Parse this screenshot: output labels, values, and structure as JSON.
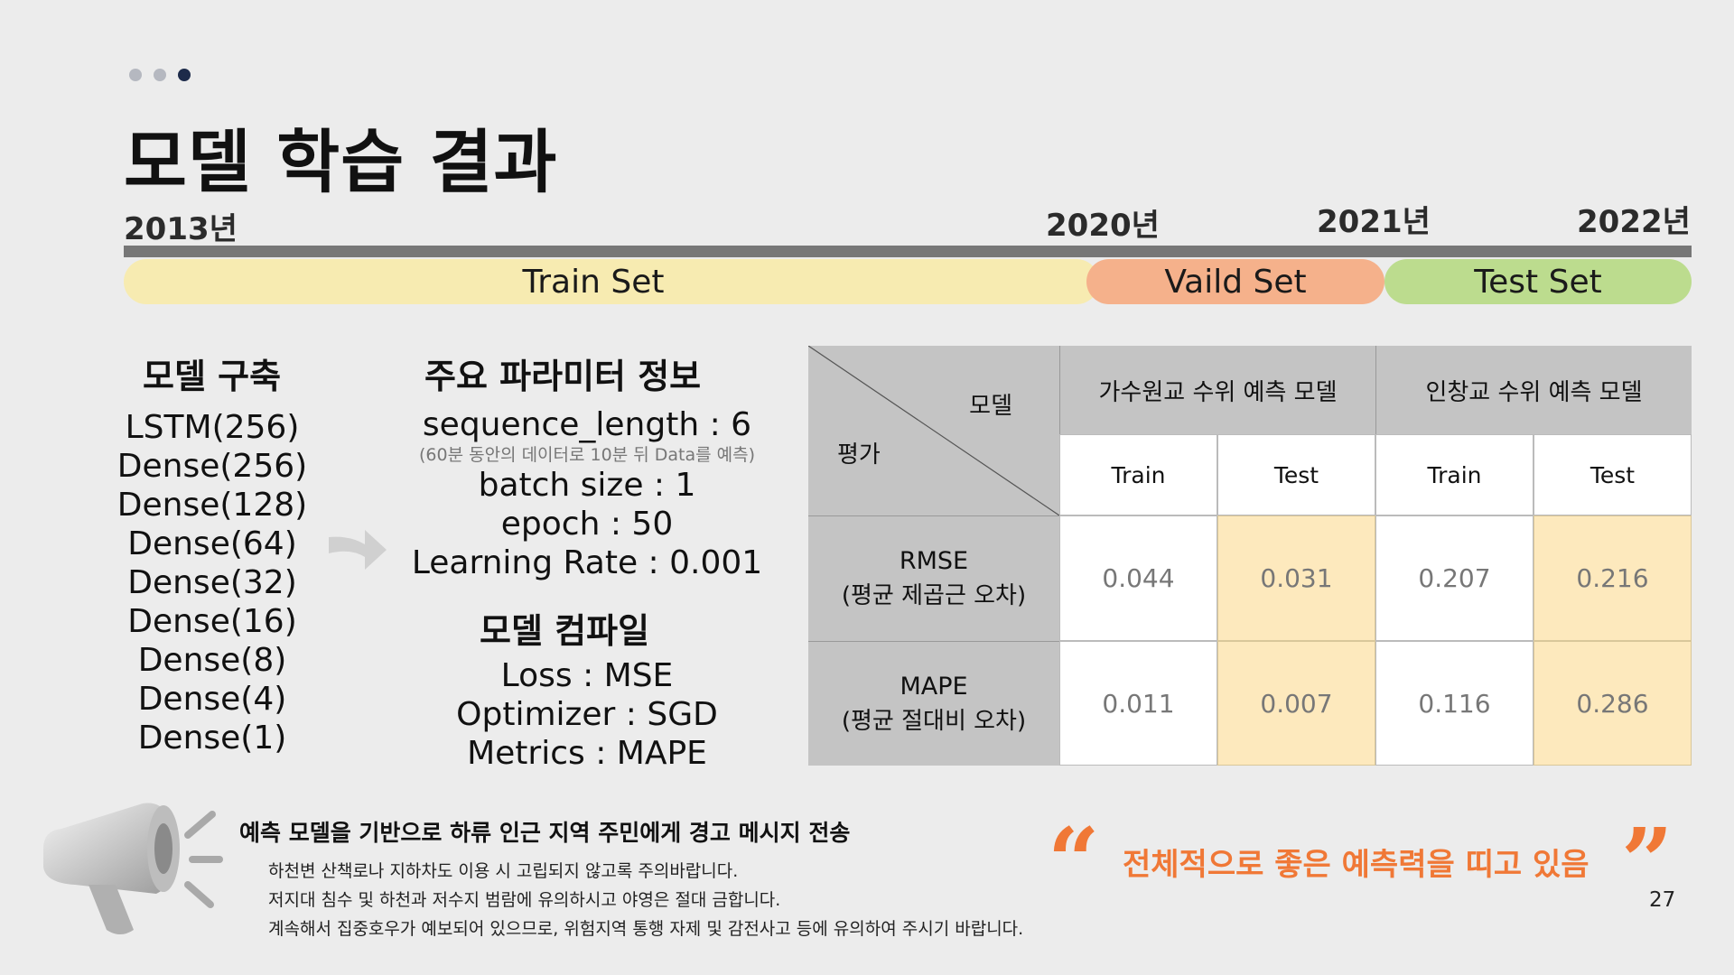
{
  "header": {
    "page_title": "모델 학습 결과",
    "dots": [
      "#b5b8c0",
      "#b5b8c0",
      "#1d2b4a"
    ]
  },
  "timeline": {
    "years": [
      "2013년",
      "2020년",
      "2021년",
      "2022년"
    ],
    "train_label": "Train Set",
    "valid_label": "Vaild Set",
    "test_label": "Test Set",
    "colors": {
      "train": "#f7ebb1",
      "valid": "#f5b18b",
      "test": "#bcdc8e",
      "bar": "#777777"
    }
  },
  "model_build": {
    "heading": "모델 구축",
    "layers": [
      "LSTM(256)",
      "Dense(256)",
      "Dense(128)",
      "Dense(64)",
      "Dense(32)",
      "Dense(16)",
      "Dense(8)",
      "Dense(4)",
      "Dense(1)"
    ]
  },
  "params": {
    "heading": "주요 파라미터 정보",
    "sequence_length": "sequence_length : 6",
    "sequence_note": "(60분 동안의 데이터로 10분 뒤 Data를 예측)",
    "batch_size": "batch size : 1",
    "epoch": "epoch : 50",
    "learning_rate": "Learning Rate : 0.001"
  },
  "compile": {
    "heading": "모델 컴파일",
    "loss": "Loss : MSE",
    "optimizer": "Optimizer : SGD",
    "metrics": "Metrics : MAPE"
  },
  "table": {
    "corner_model": "모델",
    "corner_eval": "평가",
    "group1": "가수원교 수위 예측 모델",
    "group2": "인창교 수위 예측 모델",
    "col_train": "Train",
    "col_test": "Test",
    "rows": [
      {
        "metric": "RMSE",
        "desc": "(평균 제곱근 오차)",
        "values": [
          "0.044",
          "0.031",
          "0.207",
          "0.216"
        ]
      },
      {
        "metric": "MAPE",
        "desc": "(평균 절대비 오차)",
        "values": [
          "0.011",
          "0.007",
          "0.116",
          "0.286"
        ]
      }
    ]
  },
  "notice": {
    "title": "예측 모델을 기반으로 하류 인근 지역 주민에게 경고 메시지 전송",
    "lines": [
      "하천변 산책로나 지하차도 이용 시 고립되지 않고록 주의바랍니다.",
      "저지대 침수 및 하천과 저수지 범람에 유의하시고 야영은 절대 금합니다.",
      "계속해서 집중호우가 예보되어 있으므로, 위험지역 통행 자제 및 감전사고 등에 유의하여 주시기 바랍니다."
    ]
  },
  "quote": {
    "open_mark": "“",
    "close_mark": "”",
    "text": "전체적으로 좋은 예측력을 띠고 있음",
    "color": "#f07836"
  },
  "page_number": "27"
}
